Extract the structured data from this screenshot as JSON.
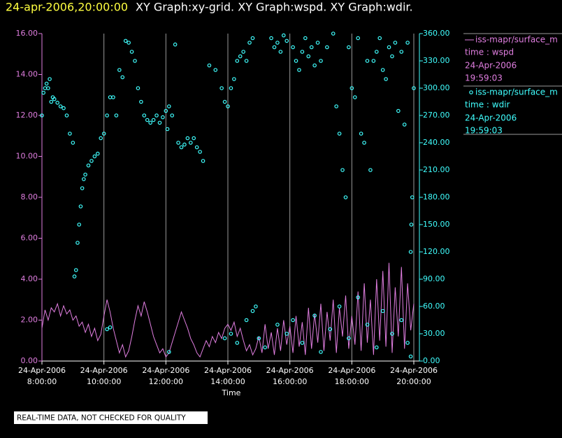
{
  "chart_data": {
    "type": "scatter-line",
    "title_time": "24-apr-2006,20:00:00",
    "title": "XY Graph:xy-grid.  XY Graph:wspd.  XY Graph:wdir.",
    "x_label": "Time",
    "footer": "REAL-TIME DATA, NOT CHECKED FOR QUALITY",
    "xlim": [
      8,
      20
    ],
    "xticks": [
      {
        "value": 8,
        "date": "24-Apr-2006",
        "label": "8:00:00"
      },
      {
        "value": 10,
        "date": "24-Apr-2006",
        "label": "10:00:00"
      },
      {
        "value": 12,
        "date": "24-Apr-2006",
        "label": "12:00:00"
      },
      {
        "value": 14,
        "date": "24-Apr-2006",
        "label": "14:00:00"
      },
      {
        "value": 16,
        "date": "24-Apr-2006",
        "label": "16:00:00"
      },
      {
        "value": 18,
        "date": "24-Apr-2006",
        "label": "18:00:00"
      },
      {
        "value": 20,
        "date": "24-Apr-2006",
        "label": "20:00:00"
      }
    ],
    "ylim": [
      0,
      16
    ],
    "yticks": [
      {
        "value": 0,
        "label": "0.00"
      },
      {
        "value": 2,
        "label": "2.00"
      },
      {
        "value": 4,
        "label": "4.00"
      },
      {
        "value": 6,
        "label": "6.00"
      },
      {
        "value": 8,
        "label": "8.00"
      },
      {
        "value": 10,
        "label": "10.00"
      },
      {
        "value": 12,
        "label": "12.00"
      },
      {
        "value": 14,
        "label": "14.00"
      },
      {
        "value": 16,
        "label": "16.00"
      }
    ],
    "y2lim": [
      0,
      360
    ],
    "y2ticks": [
      {
        "value": 0,
        "label": "0.00"
      },
      {
        "value": 30,
        "label": "30.00"
      },
      {
        "value": 60,
        "label": "60.00"
      },
      {
        "value": 90,
        "label": "90.00"
      },
      {
        "value": 120,
        "label": "120.00"
      },
      {
        "value": 150,
        "label": "150.00"
      },
      {
        "value": 180,
        "label": "180.00"
      },
      {
        "value": 210,
        "label": "210.00"
      },
      {
        "value": 240,
        "label": "240.00"
      },
      {
        "value": 270,
        "label": "270.00"
      },
      {
        "value": 300,
        "label": "300.00"
      },
      {
        "value": 330,
        "label": "330.00"
      },
      {
        "value": 360,
        "label": "360.00"
      }
    ],
    "grid": true,
    "series": [
      {
        "name": "iss-mapr/surface_m",
        "legend_time": "time : wspd",
        "date": "24-Apr-2006",
        "time": "19:59:03",
        "color": "#e07ee0",
        "style": "line",
        "axis": "y",
        "x": [
          8.0,
          8.1,
          8.2,
          8.3,
          8.4,
          8.5,
          8.6,
          8.7,
          8.8,
          8.9,
          9.0,
          9.1,
          9.2,
          9.3,
          9.4,
          9.5,
          9.6,
          9.7,
          9.8,
          9.9,
          10.0,
          10.1,
          10.2,
          10.3,
          10.4,
          10.5,
          10.6,
          10.7,
          10.8,
          10.9,
          11.0,
          11.1,
          11.2,
          11.3,
          11.4,
          11.5,
          11.6,
          11.7,
          11.8,
          11.9,
          12.0,
          12.1,
          12.2,
          12.3,
          12.4,
          12.5,
          12.6,
          12.7,
          12.8,
          12.9,
          13.0,
          13.1,
          13.2,
          13.3,
          13.4,
          13.5,
          13.6,
          13.7,
          13.8,
          13.9,
          14.0,
          14.1,
          14.2,
          14.3,
          14.4,
          14.5,
          14.6,
          14.7,
          14.8,
          14.9,
          15.0,
          15.1,
          15.2,
          15.3,
          15.4,
          15.5,
          15.6,
          15.7,
          15.8,
          15.9,
          16.0,
          16.1,
          16.2,
          16.3,
          16.4,
          16.5,
          16.6,
          16.7,
          16.8,
          16.9,
          17.0,
          17.1,
          17.2,
          17.3,
          17.4,
          17.5,
          17.6,
          17.7,
          17.8,
          17.9,
          18.0,
          18.1,
          18.2,
          18.3,
          18.4,
          18.5,
          18.6,
          18.7,
          18.8,
          18.9,
          19.0,
          19.1,
          19.2,
          19.3,
          19.4,
          19.5,
          19.6,
          19.7,
          19.8,
          19.9,
          20.0
        ],
        "values": [
          1.6,
          2.5,
          2.0,
          2.6,
          2.4,
          2.8,
          2.2,
          2.7,
          2.3,
          2.5,
          2.0,
          2.2,
          1.7,
          1.9,
          1.4,
          1.8,
          1.2,
          1.6,
          1.0,
          1.3,
          2.2,
          3.0,
          2.4,
          1.6,
          1.0,
          0.4,
          0.8,
          0.2,
          0.5,
          1.2,
          2.0,
          2.7,
          2.2,
          2.9,
          2.4,
          1.8,
          1.2,
          0.8,
          0.4,
          0.6,
          0.2,
          0.4,
          0.9,
          1.4,
          1.9,
          2.4,
          2.0,
          1.6,
          1.1,
          0.8,
          0.4,
          0.2,
          0.6,
          1.0,
          0.7,
          1.2,
          0.9,
          1.4,
          1.1,
          1.6,
          1.8,
          1.5,
          1.9,
          1.2,
          1.6,
          1.0,
          0.5,
          0.8,
          0.3,
          0.6,
          1.2,
          0.4,
          1.8,
          0.6,
          1.4,
          0.3,
          1.6,
          0.5,
          2.0,
          0.8,
          1.7,
          0.4,
          2.2,
          0.7,
          1.9,
          0.3,
          2.6,
          0.6,
          2.3,
          0.9,
          2.8,
          0.5,
          2.4,
          1.0,
          3.0,
          0.4,
          2.6,
          1.2,
          3.2,
          0.6,
          2.2,
          0.8,
          3.4,
          0.5,
          3.8,
          0.9,
          3.0,
          0.3,
          4.0,
          1.0,
          4.4,
          0.7,
          4.8,
          0.4,
          3.6,
          1.2,
          4.6,
          0.6,
          3.8,
          1.5,
          2.8
        ]
      },
      {
        "name": "iss-mapr/surface_m",
        "legend_time": "time : wdir",
        "date": "24-Apr-2006",
        "time": "19:59:03",
        "color": "#40ffff",
        "style": "points",
        "axis": "y2",
        "x": [
          8.0,
          8.05,
          8.1,
          8.15,
          8.2,
          8.25,
          8.3,
          8.35,
          8.4,
          8.5,
          8.6,
          8.7,
          8.8,
          8.9,
          9.0,
          9.05,
          9.1,
          9.15,
          9.2,
          9.25,
          9.3,
          9.35,
          9.4,
          9.5,
          9.6,
          9.7,
          9.8,
          9.9,
          10.0,
          10.1,
          10.2,
          10.3,
          10.4,
          10.5,
          10.6,
          10.7,
          10.8,
          10.9,
          11.0,
          11.1,
          11.2,
          11.3,
          11.4,
          11.5,
          11.6,
          11.7,
          11.8,
          11.9,
          12.0,
          12.05,
          12.1,
          12.2,
          12.3,
          12.4,
          12.5,
          12.6,
          12.7,
          12.8,
          12.9,
          13.0,
          13.1,
          13.2,
          13.4,
          13.6,
          13.8,
          13.9,
          14.0,
          14.1,
          14.2,
          14.3,
          14.4,
          14.5,
          14.6,
          14.7,
          14.8,
          15.4,
          15.5,
          15.6,
          15.7,
          15.8,
          15.9,
          16.1,
          16.2,
          16.3,
          16.4,
          16.5,
          16.6,
          16.7,
          16.8,
          16.9,
          17.0,
          17.2,
          17.4,
          17.5,
          17.6,
          17.7,
          17.8,
          17.9,
          18.0,
          18.1,
          18.2,
          18.3,
          18.4,
          18.5,
          18.6,
          18.7,
          18.8,
          18.9,
          19.0,
          19.1,
          19.2,
          19.3,
          19.4,
          19.5,
          19.6,
          19.7,
          19.8,
          19.9,
          19.92,
          19.95,
          20.0,
          10.1,
          10.2,
          12.1,
          13.9,
          14.1,
          14.3,
          14.6,
          14.8,
          14.9,
          15.0,
          15.2,
          15.6,
          15.9,
          16.1,
          16.4,
          16.8,
          17.0,
          17.3,
          17.6,
          17.9,
          18.2,
          18.5,
          18.8,
          19.0,
          19.3,
          19.6,
          19.8,
          19.9
        ],
        "values": [
          270,
          295,
          300,
          305,
          300,
          310,
          285,
          290,
          288,
          284,
          280,
          278,
          270,
          250,
          240,
          93,
          100,
          130,
          150,
          170,
          190,
          200,
          205,
          215,
          220,
          225,
          228,
          245,
          250,
          270,
          290,
          290,
          270,
          320,
          312,
          352,
          350,
          340,
          330,
          300,
          285,
          270,
          265,
          262,
          265,
          270,
          262,
          268,
          275,
          255,
          280,
          270,
          348,
          240,
          235,
          238,
          245,
          240,
          245,
          235,
          230,
          220,
          325,
          320,
          300,
          285,
          280,
          300,
          310,
          330,
          335,
          340,
          330,
          350,
          355,
          355,
          345,
          350,
          340,
          358,
          352,
          345,
          330,
          320,
          340,
          355,
          335,
          345,
          325,
          350,
          330,
          345,
          360,
          280,
          250,
          210,
          180,
          345,
          300,
          290,
          355,
          250,
          240,
          330,
          210,
          330,
          340,
          355,
          320,
          310,
          345,
          335,
          350,
          275,
          340,
          260,
          350,
          120,
          150,
          180,
          300,
          35,
          37,
          10,
          25,
          30,
          20,
          45,
          55,
          60,
          25,
          15,
          40,
          30,
          45,
          20,
          50,
          10,
          35,
          60,
          25,
          70,
          40,
          15,
          55,
          30,
          45,
          20,
          5
        ]
      }
    ]
  }
}
